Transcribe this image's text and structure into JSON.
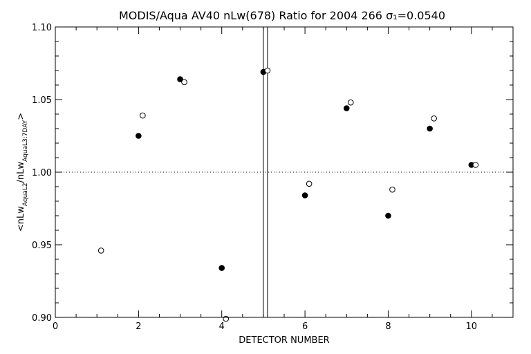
{
  "chart_data": {
    "type": "scatter",
    "title": "MODIS/Aqua AV40 nLw(678) Ratio for 2004 266 σ₁=0.0540",
    "xlabel": "DETECTOR NUMBER",
    "ylabel": "<nLw_AquaL2/nLw_AquaL3:7DAY>",
    "ylabel_parts": {
      "open": "<nLw",
      "sub1": "AquaL2",
      "mid": "/nLw",
      "sub2": "AquaL3:7DAY",
      "close": ">"
    },
    "xlim": [
      0,
      11
    ],
    "ylim": [
      0.9,
      1.1
    ],
    "x_ticks": [
      "0",
      "2",
      "4",
      "6",
      "8",
      "10"
    ],
    "y_ticks": [
      "0.90",
      "0.95",
      "1.00",
      "1.05",
      "1.10"
    ],
    "reference_line_y": 1.0,
    "vertical_lines_x": [
      5.0,
      5.1
    ],
    "series": [
      {
        "marker": "filled-circle",
        "x": [
          2,
          3,
          4,
          5,
          6,
          7,
          8,
          9,
          10
        ],
        "y": [
          1.025,
          1.064,
          0.934,
          1.069,
          0.984,
          1.044,
          0.97,
          1.03,
          1.005
        ]
      },
      {
        "marker": "open-circle",
        "x": [
          1.1,
          2.1,
          3.1,
          4.1,
          5.1,
          6.1,
          7.1,
          8.1,
          9.1,
          10.1
        ],
        "y": [
          0.946,
          1.039,
          1.062,
          0.899,
          1.07,
          0.992,
          1.048,
          0.988,
          1.037,
          1.005
        ]
      }
    ]
  }
}
